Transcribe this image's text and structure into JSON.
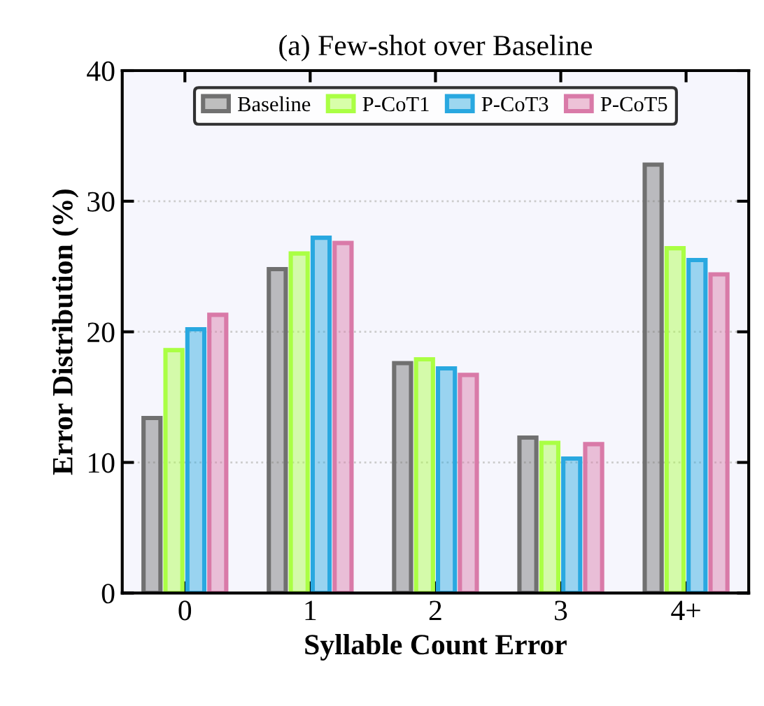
{
  "chart_data": {
    "type": "bar",
    "title": "(a) Few-shot over Baseline",
    "xlabel": "Syllable Count Error",
    "ylabel": "Error Distribution (%)",
    "categories": [
      "0",
      "1",
      "2",
      "3",
      "4+"
    ],
    "series": [
      {
        "name": "Baseline",
        "color": "#707070",
        "values": [
          13.4,
          24.8,
          17.6,
          11.9,
          32.8
        ]
      },
      {
        "name": "P-CoT1",
        "color": "#aaff44",
        "values": [
          18.6,
          26.0,
          17.9,
          11.5,
          26.4
        ]
      },
      {
        "name": "P-CoT3",
        "color": "#29a8e0",
        "values": [
          20.2,
          27.2,
          17.2,
          10.3,
          25.5
        ]
      },
      {
        "name": "P-CoT5",
        "color": "#d97aa8",
        "values": [
          21.3,
          26.8,
          16.7,
          11.4,
          24.4
        ]
      }
    ],
    "ylim": [
      0,
      40
    ],
    "yticks": [
      0,
      10,
      20,
      30,
      40
    ],
    "grid": "y",
    "legend": "top"
  }
}
